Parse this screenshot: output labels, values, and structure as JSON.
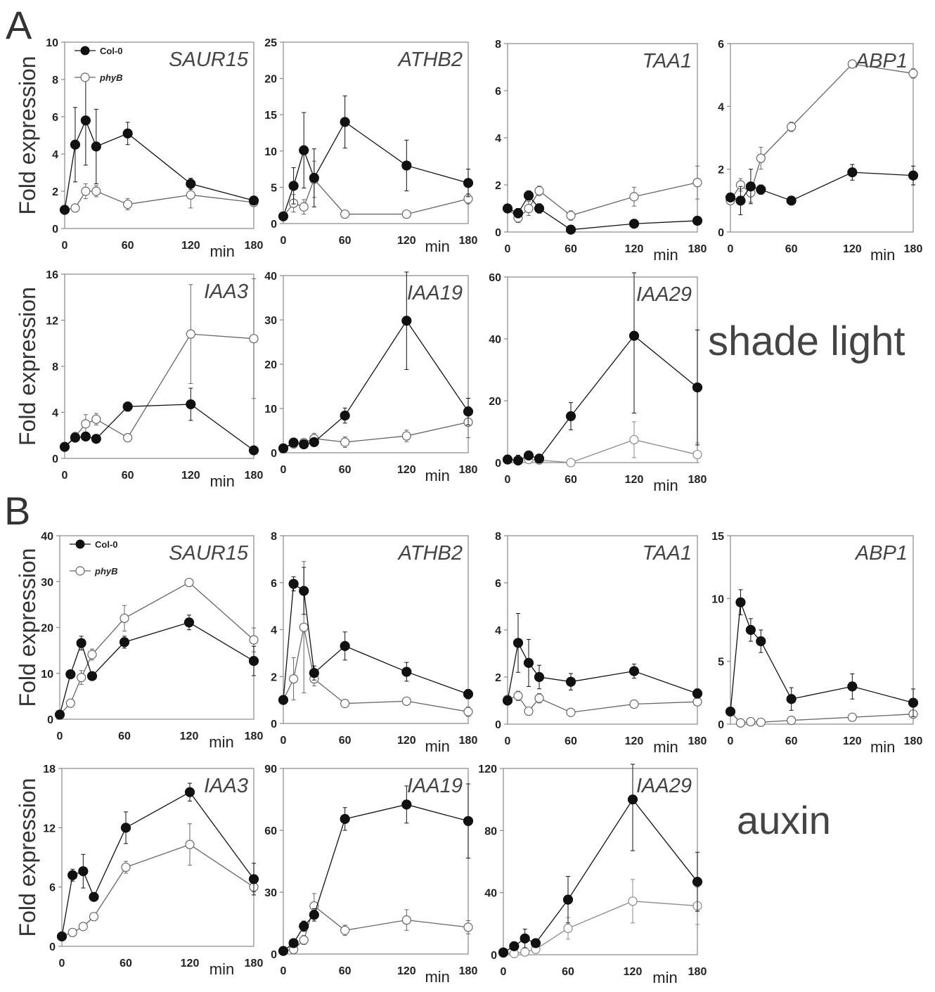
{
  "figure": {
    "panel_a_letter": "A",
    "panel_b_letter": "B",
    "panel_a_condition": "shade light",
    "panel_b_condition": "auxin",
    "ylabel": "Fold expression",
    "xunit": "min",
    "legend": {
      "col0": "Col-0",
      "phyb": "phyB"
    },
    "colors": {
      "col0": "#111111",
      "phyb": "#666666",
      "phyb_light": "#8a8a8a",
      "frame": "#888888"
    }
  },
  "chart_data": [
    {
      "type": "line",
      "panel": "A",
      "title": "SAUR15",
      "x": [
        0,
        10,
        20,
        30,
        60,
        120,
        180
      ],
      "ylim": [
        0,
        10
      ],
      "yticks": [
        0,
        2,
        4,
        6,
        8,
        10
      ],
      "xticks": [
        0,
        60,
        120,
        180
      ],
      "has_legend": true,
      "ylabel": "Fold expression",
      "series": [
        {
          "name": "Col-0",
          "values": [
            1.0,
            4.5,
            5.8,
            4.4,
            5.1,
            2.4,
            1.5
          ],
          "err": [
            0,
            2.0,
            2.4,
            2.0,
            0.6,
            0.3,
            0.2
          ]
        },
        {
          "name": "phyB",
          "values": [
            1.0,
            1.1,
            2.0,
            2.0,
            1.3,
            1.8,
            1.4
          ],
          "err": [
            0,
            0.2,
            0.4,
            0.3,
            0.3,
            0.7,
            0.2
          ]
        }
      ]
    },
    {
      "type": "line",
      "panel": "A",
      "title": "ATHB2",
      "x": [
        0,
        10,
        20,
        30,
        60,
        120,
        180
      ],
      "ylim": [
        0,
        25
      ],
      "yticks": [
        0,
        5,
        10,
        15,
        20,
        25
      ],
      "xticks": [
        0,
        60,
        120,
        180
      ],
      "series": [
        {
          "name": "Col-0",
          "values": [
            1.0,
            5.2,
            10.1,
            6.3,
            14.0,
            8.0,
            5.6
          ],
          "err": [
            0,
            2.5,
            5.2,
            4.0,
            3.6,
            3.5,
            1.9
          ]
        },
        {
          "name": "phyB",
          "values": [
            1.0,
            2.8,
            2.3,
            6.1,
            1.3,
            1.3,
            3.4
          ],
          "err": [
            0,
            1.2,
            1.0,
            2.5,
            0.2,
            0.2,
            0.7
          ]
        }
      ]
    },
    {
      "type": "line",
      "panel": "A",
      "title": "TAA1",
      "x": [
        0,
        10,
        20,
        30,
        60,
        120,
        180
      ],
      "ylim": [
        0,
        8
      ],
      "yticks": [
        0,
        2,
        4,
        6,
        8
      ],
      "xticks": [
        0,
        60,
        120,
        180
      ],
      "series": [
        {
          "name": "Col-0",
          "values": [
            1.0,
            0.8,
            1.55,
            1.0,
            0.1,
            0.35,
            0.48
          ],
          "err": [
            0,
            0.2,
            0.2,
            0.2,
            0.05,
            0.08,
            0.1
          ]
        },
        {
          "name": "phyB",
          "values": [
            1.0,
            0.6,
            1.0,
            1.75,
            0.7,
            1.5,
            2.1
          ],
          "err": [
            0,
            0.2,
            0.3,
            0.2,
            0.2,
            0.4,
            0.7
          ]
        }
      ]
    },
    {
      "type": "line",
      "panel": "A",
      "title": "ABP1",
      "x": [
        0,
        10,
        20,
        30,
        60,
        120,
        180
      ],
      "ylim": [
        0,
        6
      ],
      "yticks": [
        0,
        2,
        4,
        6
      ],
      "xticks": [
        0,
        60,
        120,
        180
      ],
      "series": [
        {
          "name": "Col-0",
          "values": [
            1.1,
            1.0,
            1.45,
            1.35,
            1.0,
            1.9,
            1.8
          ],
          "err": [
            0,
            0.45,
            0.55,
            0.15,
            0.08,
            0.25,
            0.3
          ]
        },
        {
          "name": "phyB",
          "values": [
            1.0,
            1.5,
            1.25,
            2.35,
            3.35,
            5.35,
            5.05
          ],
          "err": [
            0,
            0.2,
            0.3,
            0.35,
            0.15,
            0.1,
            0.15
          ]
        }
      ]
    },
    {
      "type": "line",
      "panel": "A",
      "title": "IAA3",
      "x": [
        0,
        10,
        20,
        30,
        60,
        120,
        180
      ],
      "ylim": [
        0,
        16
      ],
      "yticks": [
        0,
        4,
        8,
        12,
        16
      ],
      "xticks": [
        0,
        60,
        120,
        180
      ],
      "ylabel": "Fold expression",
      "series": [
        {
          "name": "Col-0",
          "values": [
            1.0,
            1.8,
            1.9,
            1.7,
            4.5,
            4.7,
            0.7
          ],
          "err": [
            0,
            0.3,
            0.3,
            0.3,
            0.4,
            1.4,
            0.3
          ]
        },
        {
          "name": "phyB",
          "values": [
            1.0,
            1.9,
            3.0,
            3.4,
            1.8,
            10.8,
            10.4
          ],
          "err": [
            0,
            0.3,
            0.8,
            0.5,
            0.3,
            4.3,
            5.2
          ]
        }
      ]
    },
    {
      "type": "line",
      "panel": "A",
      "title": "IAA19",
      "x": [
        0,
        10,
        20,
        30,
        60,
        120,
        180
      ],
      "ylim": [
        0,
        40
      ],
      "yticks": [
        0,
        10,
        20,
        30,
        40
      ],
      "xticks": [
        0,
        60,
        120,
        180
      ],
      "series": [
        {
          "name": "Col-0",
          "values": [
            1.0,
            2.3,
            1.9,
            2.4,
            8.4,
            29.8,
            9.3
          ],
          "err": [
            0,
            0.5,
            0.5,
            0.5,
            1.7,
            11.0,
            3.0
          ]
        },
        {
          "name": "phyB",
          "values": [
            1.0,
            2.0,
            2.3,
            3.2,
            2.4,
            3.8,
            6.9
          ],
          "err": [
            0,
            0.4,
            0.6,
            1.2,
            1.2,
            1.3,
            3.5
          ]
        }
      ]
    },
    {
      "type": "line",
      "panel": "A",
      "title": "IAA29",
      "x": [
        0,
        10,
        20,
        30,
        60,
        120,
        180
      ],
      "ylim": [
        0,
        60
      ],
      "yticks": [
        0,
        20,
        40,
        60
      ],
      "xticks": [
        0,
        60,
        120,
        180
      ],
      "series": [
        {
          "name": "Col-0",
          "values": [
            1.0,
            0.7,
            2.3,
            1.3,
            15.0,
            41.0,
            24.3
          ],
          "err": [
            0,
            1.7,
            1.3,
            1.2,
            4.4,
            25.0,
            18.6
          ]
        },
        {
          "name": "phyB",
          "values": [
            1.0,
            0.8,
            1.0,
            0.8,
            0.0,
            7.4,
            2.6
          ],
          "err": [
            0,
            0.6,
            0.6,
            0.6,
            0.3,
            5.8,
            3.8
          ]
        }
      ]
    },
    {
      "type": "line",
      "panel": "B",
      "title": "SAUR15",
      "x": [
        0,
        10,
        20,
        30,
        60,
        120,
        180
      ],
      "ylim": [
        0,
        40
      ],
      "yticks": [
        0,
        10,
        20,
        30,
        40
      ],
      "xticks": [
        0,
        60,
        120,
        180
      ],
      "has_legend": true,
      "ylabel": "Fold expression",
      "series": [
        {
          "name": "Col-0",
          "values": [
            1.0,
            9.8,
            16.6,
            9.4,
            16.8,
            21.1,
            12.7
          ],
          "err": [
            0,
            0.8,
            1.5,
            0.8,
            1.3,
            1.6,
            3.2
          ]
        },
        {
          "name": "phyB",
          "values": [
            1.0,
            3.5,
            9.1,
            14.1,
            22.0,
            29.8,
            17.3
          ],
          "err": [
            0,
            0.6,
            1.5,
            1.2,
            2.8,
            0.8,
            2.6
          ]
        }
      ]
    },
    {
      "type": "line",
      "panel": "B",
      "title": "ATHB2",
      "x": [
        0,
        10,
        20,
        30,
        60,
        120,
        180
      ],
      "ylim": [
        0,
        8
      ],
      "yticks": [
        0,
        2,
        4,
        6,
        8
      ],
      "xticks": [
        0,
        60,
        120,
        180
      ],
      "series": [
        {
          "name": "Col-0",
          "values": [
            1.0,
            5.95,
            5.65,
            2.15,
            3.3,
            2.2,
            1.25
          ],
          "err": [
            0,
            0.3,
            1.0,
            0.3,
            0.6,
            0.4,
            0.2
          ]
        },
        {
          "name": "phyB",
          "values": [
            1.0,
            1.9,
            4.1,
            1.9,
            0.85,
            0.95,
            0.5
          ],
          "err": [
            0,
            0.9,
            2.8,
            0.3,
            0.1,
            0.1,
            0.2
          ]
        }
      ]
    },
    {
      "type": "line",
      "panel": "B",
      "title": "TAA1",
      "x": [
        0,
        10,
        20,
        30,
        60,
        120,
        180
      ],
      "ylim": [
        0,
        8
      ],
      "yticks": [
        0,
        2,
        4,
        6,
        8
      ],
      "xticks": [
        0,
        60,
        120,
        180
      ],
      "series": [
        {
          "name": "Col-0",
          "values": [
            1.0,
            3.45,
            2.6,
            2.0,
            1.8,
            2.25,
            1.3
          ],
          "err": [
            0,
            1.25,
            1.0,
            0.5,
            0.35,
            0.3,
            0.2
          ]
        },
        {
          "name": "phyB",
          "values": [
            1.05,
            1.2,
            0.55,
            1.1,
            0.5,
            0.85,
            0.95
          ],
          "err": [
            0,
            0.2,
            0.1,
            0.2,
            0.15,
            0.1,
            0.1
          ]
        }
      ]
    },
    {
      "type": "line",
      "panel": "B",
      "title": "ABP1",
      "x": [
        0,
        10,
        20,
        30,
        60,
        120,
        180
      ],
      "ylim": [
        0,
        15
      ],
      "yticks": [
        0,
        5,
        10,
        15
      ],
      "xticks": [
        0,
        60,
        120,
        180
      ],
      "series": [
        {
          "name": "Col-0",
          "values": [
            1.0,
            9.7,
            7.5,
            6.6,
            2.0,
            3.0,
            1.7
          ],
          "err": [
            0,
            1.0,
            0.9,
            0.9,
            0.9,
            1.0,
            1.1
          ]
        },
        {
          "name": "phyB",
          "values": [
            1.0,
            0.1,
            0.2,
            0.15,
            0.3,
            0.55,
            0.8
          ],
          "err": [
            0,
            0.05,
            0.05,
            0.05,
            0.1,
            0.1,
            0.1
          ]
        }
      ]
    },
    {
      "type": "line",
      "panel": "B",
      "title": "IAA3",
      "x": [
        0,
        10,
        20,
        30,
        60,
        120,
        180
      ],
      "ylim": [
        0,
        18
      ],
      "yticks": [
        0,
        6,
        12,
        18
      ],
      "xticks": [
        0,
        60,
        120,
        180
      ],
      "ylabel": "Fold expression",
      "series": [
        {
          "name": "Col-0",
          "values": [
            1.0,
            7.2,
            7.6,
            5.0,
            12.0,
            15.6,
            6.8
          ],
          "err": [
            0,
            0.6,
            1.7,
            0.4,
            1.6,
            0.9,
            1.6
          ]
        },
        {
          "name": "phyB",
          "values": [
            1.0,
            1.4,
            2.0,
            3.0,
            8.0,
            10.3,
            6.0
          ],
          "err": [
            0,
            0.2,
            0.3,
            0.4,
            0.6,
            2.1,
            0.5
          ]
        }
      ]
    },
    {
      "type": "line",
      "panel": "B",
      "title": "IAA19",
      "x": [
        0,
        10,
        20,
        30,
        60,
        120,
        180
      ],
      "ylim": [
        0,
        90
      ],
      "yticks": [
        0,
        30,
        60,
        90
      ],
      "xticks": [
        0,
        60,
        120,
        180
      ],
      "series": [
        {
          "name": "Col-0",
          "values": [
            1.5,
            5.3,
            13.5,
            19.0,
            65.5,
            72.5,
            64.5
          ],
          "err": [
            0,
            1.0,
            2.5,
            3.0,
            5.5,
            9.0,
            18.0
          ]
        },
        {
          "name": "phyB",
          "values": [
            1.5,
            2.2,
            6.8,
            23.3,
            11.5,
            16.5,
            13.0
          ],
          "err": [
            0,
            0.6,
            2.2,
            6.0,
            2.5,
            5.0,
            3.2
          ]
        }
      ]
    },
    {
      "type": "line",
      "panel": "B",
      "title": "IAA29",
      "x": [
        0,
        10,
        20,
        30,
        60,
        120,
        180
      ],
      "ylim": [
        0,
        120
      ],
      "yticks": [
        0,
        40,
        80,
        120
      ],
      "xticks": [
        0,
        60,
        120,
        180
      ],
      "series": [
        {
          "name": "Col-0",
          "values": [
            1.5,
            5.5,
            10.5,
            7.5,
            35.5,
            100.0,
            47.0
          ],
          "err": [
            0,
            2.5,
            6.0,
            2.5,
            15.0,
            33.0,
            19.0
          ]
        },
        {
          "name": "phyB",
          "values": [
            1.0,
            0.8,
            1.8,
            3.5,
            17.0,
            34.5,
            31.5
          ],
          "err": [
            0,
            0.6,
            1.2,
            1.8,
            7.0,
            14.0,
            12.0
          ]
        }
      ]
    }
  ]
}
